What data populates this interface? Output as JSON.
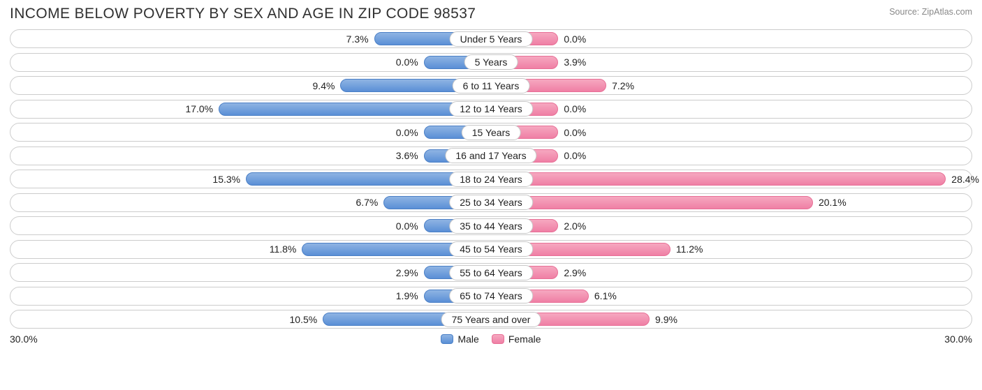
{
  "title": "INCOME BELOW POVERTY BY SEX AND AGE IN ZIP CODE 98537",
  "source": "Source: ZipAtlas.com",
  "chart": {
    "type": "diverging-bar",
    "axis_max": 30.0,
    "axis_left_label": "30.0%",
    "axis_right_label": "30.0%",
    "male_bar_color_top": "#8fb4e3",
    "male_bar_color_bottom": "#5a8fd6",
    "male_bar_border": "#4a7fc6",
    "female_bar_color_top": "#f6a8c0",
    "female_bar_color_bottom": "#ef7fa5",
    "female_bar_border": "#e86f96",
    "track_border": "#cccccc",
    "background": "#ffffff",
    "min_bar_pct_when_zero": 14.0,
    "label_fontsize": 14,
    "title_fontsize": 21,
    "title_color": "#303030",
    "source_color": "#888888",
    "rows": [
      {
        "category": "Under 5 Years",
        "male": 7.3,
        "female": 0.0,
        "male_label": "7.3%",
        "female_label": "0.0%"
      },
      {
        "category": "5 Years",
        "male": 0.0,
        "female": 3.9,
        "male_label": "0.0%",
        "female_label": "3.9%"
      },
      {
        "category": "6 to 11 Years",
        "male": 9.4,
        "female": 7.2,
        "male_label": "9.4%",
        "female_label": "7.2%"
      },
      {
        "category": "12 to 14 Years",
        "male": 17.0,
        "female": 0.0,
        "male_label": "17.0%",
        "female_label": "0.0%"
      },
      {
        "category": "15 Years",
        "male": 0.0,
        "female": 0.0,
        "male_label": "0.0%",
        "female_label": "0.0%"
      },
      {
        "category": "16 and 17 Years",
        "male": 3.6,
        "female": 0.0,
        "male_label": "3.6%",
        "female_label": "0.0%"
      },
      {
        "category": "18 to 24 Years",
        "male": 15.3,
        "female": 28.4,
        "male_label": "15.3%",
        "female_label": "28.4%"
      },
      {
        "category": "25 to 34 Years",
        "male": 6.7,
        "female": 20.1,
        "male_label": "6.7%",
        "female_label": "20.1%"
      },
      {
        "category": "35 to 44 Years",
        "male": 0.0,
        "female": 2.0,
        "male_label": "0.0%",
        "female_label": "2.0%"
      },
      {
        "category": "45 to 54 Years",
        "male": 11.8,
        "female": 11.2,
        "male_label": "11.8%",
        "female_label": "11.2%"
      },
      {
        "category": "55 to 64 Years",
        "male": 2.9,
        "female": 2.9,
        "male_label": "2.9%",
        "female_label": "2.9%"
      },
      {
        "category": "65 to 74 Years",
        "male": 1.9,
        "female": 6.1,
        "male_label": "1.9%",
        "female_label": "6.1%"
      },
      {
        "category": "75 Years and over",
        "male": 10.5,
        "female": 9.9,
        "male_label": "10.5%",
        "female_label": "9.9%"
      }
    ]
  },
  "legend": {
    "male": "Male",
    "female": "Female"
  }
}
